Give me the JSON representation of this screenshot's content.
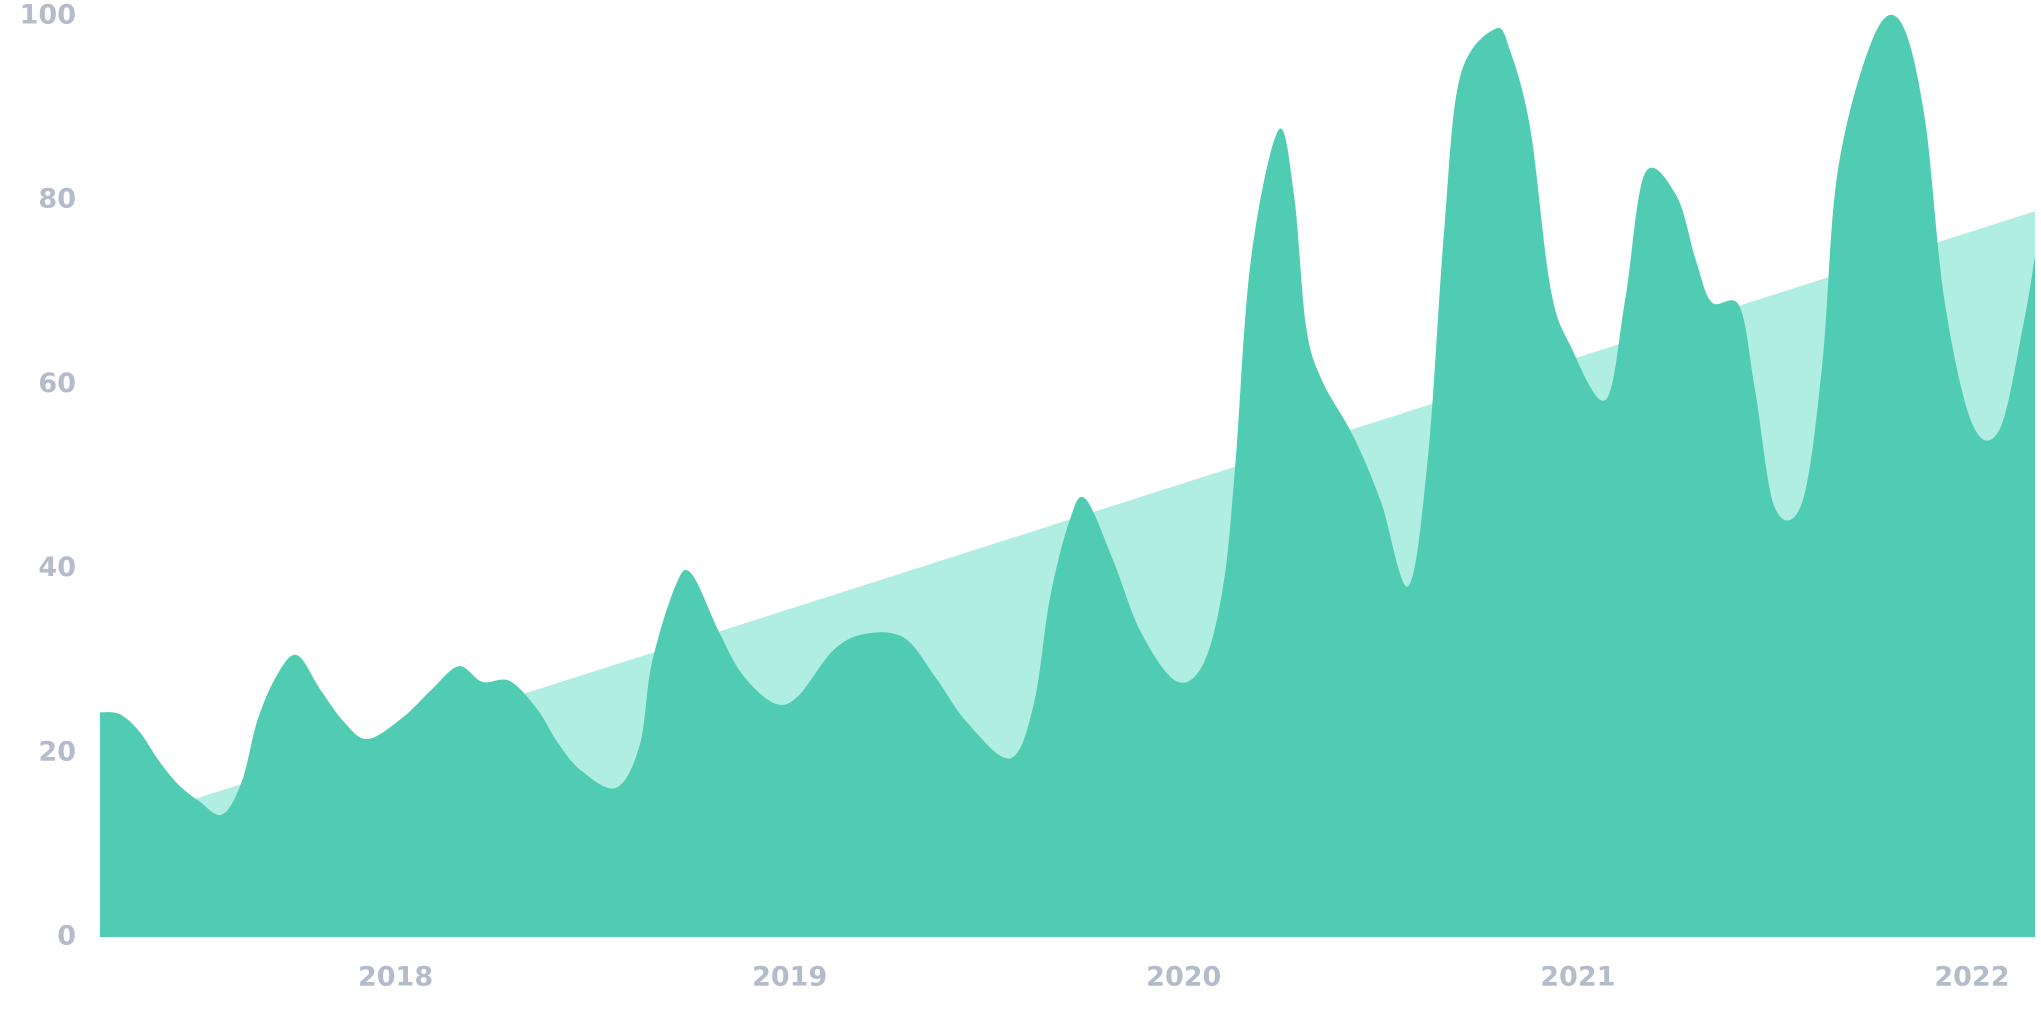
{
  "chart_data": {
    "type": "area",
    "xlim": [
      2017.25,
      2022.16
    ],
    "xticks": [
      2018,
      2019,
      2020,
      2021,
      2022
    ],
    "ylim": [
      0,
      100
    ],
    "yticks": [
      0,
      20,
      40,
      60,
      80,
      100
    ],
    "grid": false,
    "series": [
      {
        "color": "#b0ede2",
        "x": [
          2017.25,
          2022.16
        ],
        "values": [
          11.7,
          78.8
        ]
      },
      {
        "color": "#50ccb3",
        "x": [
          2017.25,
          2017.3,
          2017.35,
          2017.4,
          2017.45,
          2017.5,
          2017.56,
          2017.61,
          2017.65,
          2017.7,
          2017.75,
          2017.81,
          2017.87,
          2017.93,
          2018.02,
          2018.09,
          2018.16,
          2018.22,
          2018.29,
          2018.36,
          2018.41,
          2018.47,
          2018.56,
          2018.62,
          2018.65,
          2018.71,
          2018.75,
          2018.82,
          2018.88,
          2018.96,
          2019.02,
          2019.11,
          2019.19,
          2019.29,
          2019.37,
          2019.45,
          2019.56,
          2019.62,
          2019.66,
          2019.71,
          2019.75,
          2019.82,
          2019.89,
          2019.98,
          2020.05,
          2020.1,
          2020.13,
          2020.17,
          2020.24,
          2020.28,
          2020.31,
          2020.35,
          2020.43,
          2020.5,
          2020.57,
          2020.62,
          2020.66,
          2020.7,
          2020.79,
          2020.83,
          2020.88,
          2020.93,
          2020.98,
          2021.07,
          2021.12,
          2021.17,
          2021.25,
          2021.3,
          2021.34,
          2021.41,
          2021.45,
          2021.5,
          2021.57,
          2021.62,
          2021.66,
          2021.75,
          2021.82,
          2021.88,
          2021.93,
          2022.0,
          2022.07,
          2022.13,
          2022.16
        ],
        "values": [
          24.4,
          24.2,
          22.3,
          19.1,
          16.5,
          14.8,
          13.3,
          16.9,
          23.6,
          28.5,
          30.6,
          26.8,
          23.3,
          21.5,
          23.9,
          26.8,
          29.4,
          27.7,
          27.8,
          24.7,
          21.2,
          18.1,
          16.2,
          20.9,
          29.7,
          38.1,
          39.5,
          33.2,
          28.5,
          25.4,
          26.1,
          31.1,
          32.9,
          32.5,
          28.2,
          23.3,
          19.4,
          25.4,
          36.7,
          45.2,
          47.6,
          41.0,
          33.2,
          27.8,
          29.7,
          38.1,
          50.8,
          73.4,
          87.6,
          80.5,
          66.4,
          60.5,
          54.4,
          47.3,
          38.1,
          52.3,
          76.3,
          93.2,
          98.6,
          96.0,
          87.6,
          70.6,
          64.3,
          58.3,
          69.2,
          82.9,
          80.5,
          73.4,
          68.9,
          68.5,
          59.3,
          46.6,
          47.3,
          62.1,
          83.3,
          97.7,
          99.3,
          89.0,
          69.2,
          55.8,
          55.1,
          66.4,
          73.9
        ]
      }
    ]
  }
}
